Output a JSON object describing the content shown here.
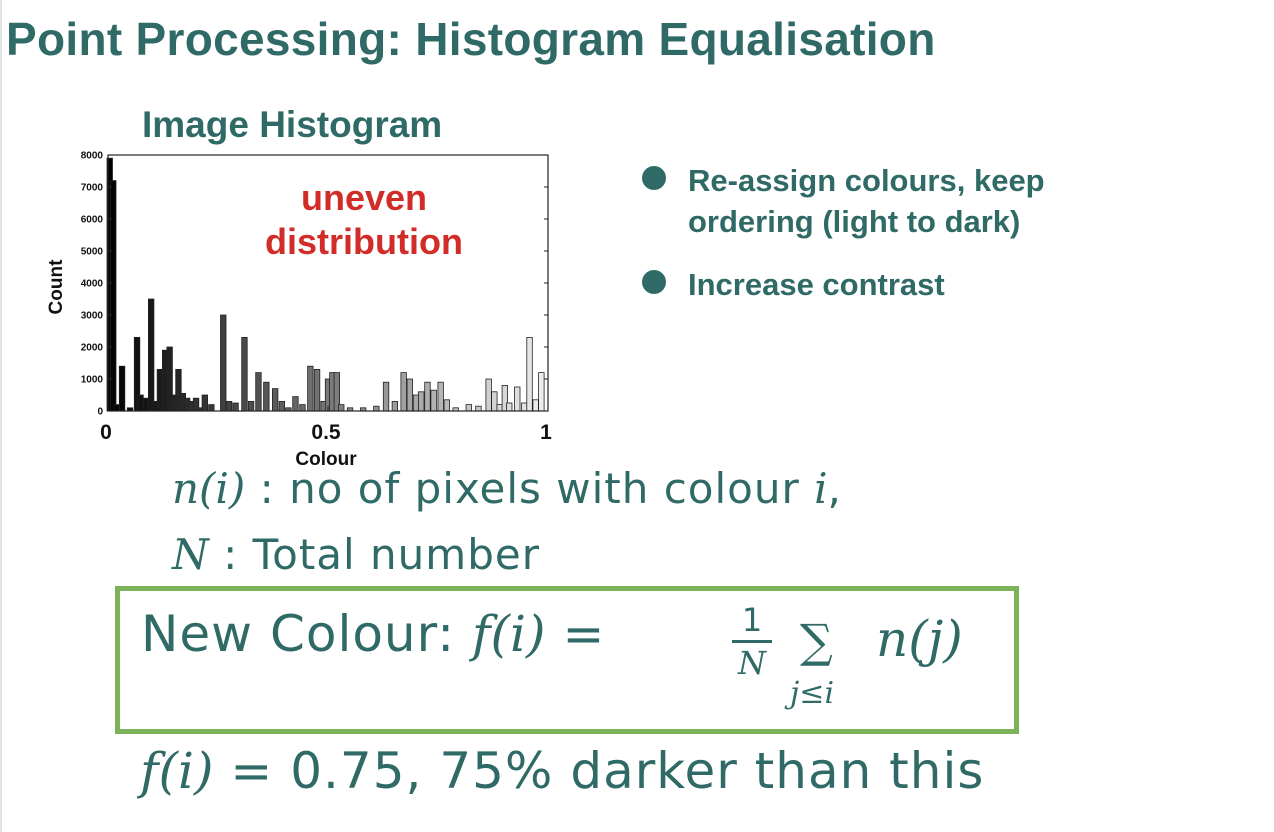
{
  "slide": {
    "title": "Point Processing: Histogram Equalisation"
  },
  "histogram": {
    "title": "Image Histogram",
    "annotation_line1": "uneven",
    "annotation_line2": "distribution"
  },
  "bullets": [
    {
      "text": "Re-assign colours, keep ordering (light to dark)"
    },
    {
      "text": "Increase contrast"
    }
  ],
  "definitions": {
    "n_symbol": "n(i)",
    "n_text": " : no of pixels with colour ",
    "n_var": "i",
    "n_end": ",",
    "N_symbol": "N",
    "N_text": " : Total number"
  },
  "formula": {
    "label": "New Colour: ",
    "lhs": "f(i)",
    "equals": " = ",
    "frac_num": "1",
    "frac_den": "N",
    "sigma": "∑",
    "sigma_sub": "j≤i",
    "rhs": "n(j)"
  },
  "example": {
    "lhs": "f(i)",
    "text": " = 0.75, 75% darker than this"
  },
  "colors": {
    "title": "#2f6a66",
    "accent_red": "#d12c28",
    "box_border": "#7cb35a"
  },
  "chart_data": {
    "type": "bar",
    "title": "Image Histogram",
    "xlabel": "Colour",
    "ylabel": "Count",
    "xlim": [
      0,
      1
    ],
    "ylim": [
      0,
      8000
    ],
    "yticks": [
      0,
      1000,
      2000,
      3000,
      4000,
      5000,
      6000,
      7000,
      8000
    ],
    "xticks": [
      "0",
      "0.5",
      "1"
    ],
    "annotation": "uneven distribution",
    "x": [
      0.004,
      0.012,
      0.02,
      0.032,
      0.05,
      0.066,
      0.074,
      0.086,
      0.098,
      0.106,
      0.118,
      0.13,
      0.14,
      0.15,
      0.16,
      0.17,
      0.18,
      0.19,
      0.2,
      0.21,
      0.22,
      0.235,
      0.262,
      0.275,
      0.29,
      0.31,
      0.325,
      0.342,
      0.36,
      0.38,
      0.395,
      0.41,
      0.426,
      0.442,
      0.46,
      0.475,
      0.49,
      0.5,
      0.51,
      0.52,
      0.53,
      0.55,
      0.58,
      0.61,
      0.632,
      0.652,
      0.672,
      0.686,
      0.7,
      0.712,
      0.726,
      0.74,
      0.756,
      0.77,
      0.79,
      0.82,
      0.842,
      0.865,
      0.878,
      0.89,
      0.902,
      0.912,
      0.93,
      0.946,
      0.958,
      0.972,
      0.985
    ],
    "values": [
      7900,
      7200,
      200,
      1400,
      100,
      2300,
      500,
      400,
      3500,
      300,
      1300,
      1900,
      2000,
      500,
      1300,
      550,
      400,
      300,
      400,
      100,
      500,
      200,
      3000,
      300,
      250,
      2300,
      300,
      1200,
      900,
      700,
      300,
      100,
      450,
      200,
      1400,
      1300,
      300,
      1000,
      1200,
      1200,
      200,
      100,
      100,
      150,
      900,
      300,
      1200,
      1000,
      500,
      600,
      900,
      650,
      900,
      350,
      100,
      200,
      150,
      1000,
      600,
      200,
      800,
      250,
      750,
      250,
      2300,
      350,
      1200
    ]
  }
}
